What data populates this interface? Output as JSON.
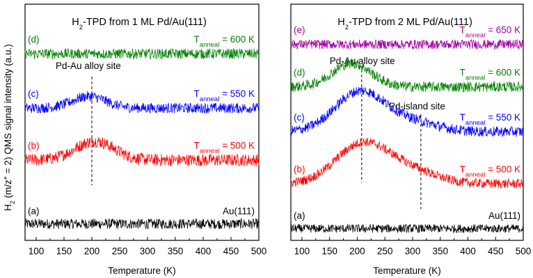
{
  "figure": {
    "ylabel_parts": [
      "H",
      "2",
      " (m/z",
      "+",
      " = 2) QMS signal intensity (a.u.)"
    ]
  },
  "chart_data": [
    {
      "type": "line",
      "title_parts": [
        "H",
        "2",
        "-TPD from 1 ML Pd/Au(111)"
      ],
      "xlabel": "Temperature (K)",
      "xlim": [
        80,
        500
      ],
      "xticks": [
        100,
        150,
        200,
        250,
        300,
        350,
        400,
        450,
        500
      ],
      "ylim": [
        0,
        1
      ],
      "vlines": [
        {
          "x": 200,
          "label": "Pd-Au alloy site"
        }
      ],
      "series": [
        {
          "letter": "(a)",
          "name": "Au(111)",
          "color": "#000000",
          "baseline": 0.07,
          "noise": 0.022,
          "peaks": []
        },
        {
          "letter": "(b)",
          "label_prefix": "T",
          "label_sub": "anneal",
          "label_suffix": " = 500 K",
          "color": "#ff0000",
          "baseline": 0.34,
          "noise": 0.026,
          "peaks": [
            {
              "center": 205,
              "height": 0.08,
              "width": 35
            }
          ]
        },
        {
          "letter": "(c)",
          "label_prefix": "T",
          "label_sub": "anneal",
          "label_suffix": " = 550 K",
          "color": "#0000ff",
          "baseline": 0.56,
          "noise": 0.022,
          "peaks": [
            {
              "center": 195,
              "height": 0.05,
              "width": 30
            }
          ]
        },
        {
          "letter": "(d)",
          "label_prefix": "T",
          "label_sub": "anneal",
          "label_suffix": " = 600 K",
          "color": "#008000",
          "baseline": 0.79,
          "noise": 0.022,
          "peaks": []
        }
      ]
    },
    {
      "type": "line",
      "title_parts": [
        "H",
        "2",
        "-TPD from 2 ML Pd/Au(111)"
      ],
      "xlabel": "Temperature (K)",
      "xlim": [
        80,
        500
      ],
      "xticks": [
        100,
        150,
        200,
        250,
        300,
        350,
        400,
        450,
        500
      ],
      "ylim": [
        0,
        1
      ],
      "vlines": [
        {
          "x": 208,
          "label": "Pd-Au alloy site"
        },
        {
          "x": 315,
          "label": "Pd-island site"
        }
      ],
      "series": [
        {
          "letter": "(a)",
          "name": "Au(111)",
          "color": "#000000",
          "baseline": 0.05,
          "noise": 0.018,
          "peaks": []
        },
        {
          "letter": "(b)",
          "label_prefix": "T",
          "label_sub": "anneal",
          "label_suffix": " = 500 K",
          "color": "#ff0000",
          "baseline": 0.24,
          "noise": 0.02,
          "peaks": [
            {
              "center": 210,
              "height": 0.17,
              "width": 48
            },
            {
              "center": 300,
              "height": 0.05,
              "width": 45
            }
          ]
        },
        {
          "letter": "(c)",
          "label_prefix": "T",
          "label_sub": "anneal",
          "label_suffix": " = 550 K",
          "color": "#0000ff",
          "baseline": 0.46,
          "noise": 0.022,
          "peaks": [
            {
              "center": 205,
              "height": 0.17,
              "width": 45
            },
            {
              "center": 300,
              "height": 0.04,
              "width": 45
            }
          ]
        },
        {
          "letter": "(d)",
          "label_prefix": "T",
          "label_sub": "anneal",
          "label_suffix": " = 600 K",
          "color": "#008000",
          "baseline": 0.65,
          "noise": 0.022,
          "peaks": [
            {
              "center": 190,
              "height": 0.1,
              "width": 35
            }
          ]
        },
        {
          "letter": "(e)",
          "label_prefix": "T",
          "label_sub": "anneal",
          "label_suffix": " = 650 K",
          "color": "#a000a0",
          "baseline": 0.83,
          "noise": 0.02,
          "peaks": []
        }
      ]
    }
  ]
}
